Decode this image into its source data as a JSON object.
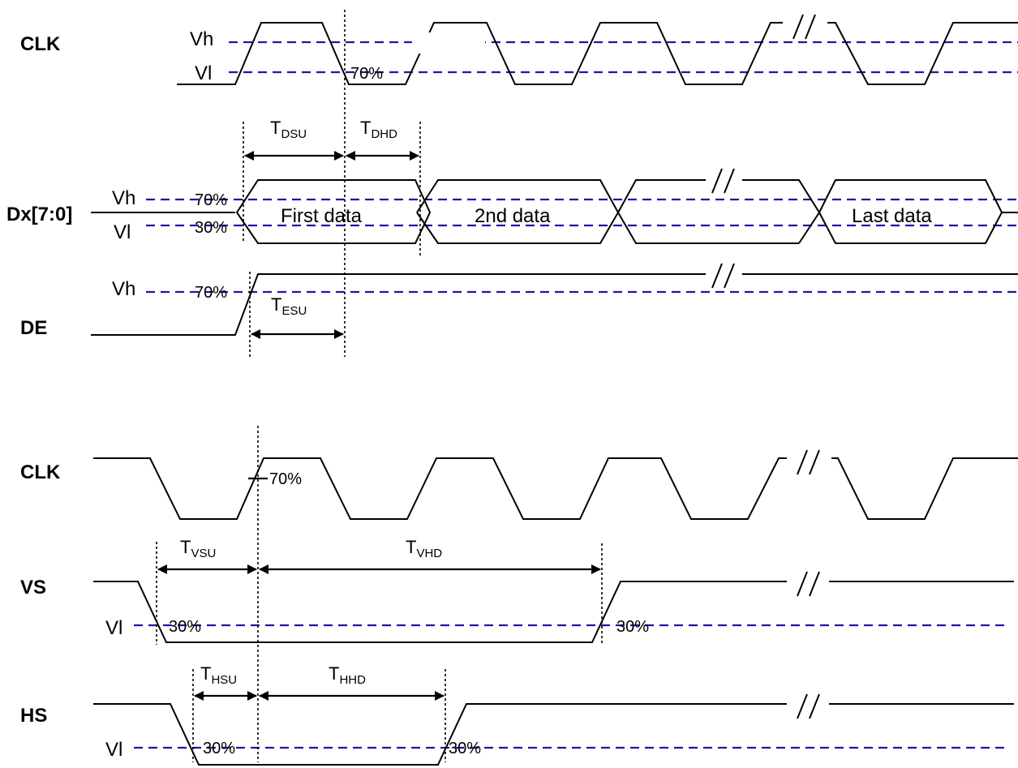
{
  "diagram": {
    "signals": {
      "clk_top": "CLK",
      "data_bus": "Dx[7:0]",
      "de": "DE",
      "clk_bottom": "CLK",
      "vs": "VS",
      "hs": "HS"
    },
    "levels": {
      "vh": "Vh",
      "vl": "Vl"
    },
    "thresholds": {
      "clk_top": "70%",
      "dx_high": "70%",
      "dx_low": "30%",
      "de_high": "70%",
      "clk_bottom": "70%",
      "vs_fall": "30%",
      "vs_rise": "30%",
      "hs_fall": "30%",
      "hs_rise": "30%"
    },
    "data_labels": {
      "first": "First data",
      "second": "2nd data",
      "last": "Last data"
    },
    "timing": {
      "tdsu": {
        "main": "T",
        "sub": "DSU"
      },
      "tdhd": {
        "main": "T",
        "sub": "DHD"
      },
      "tesu": {
        "main": "T",
        "sub": "ESU"
      },
      "tvsu": {
        "main": "T",
        "sub": "VSU"
      },
      "tvhd": {
        "main": "T",
        "sub": "VHD"
      },
      "thsu": {
        "main": "T",
        "sub": "HSU"
      },
      "thhd": {
        "main": "T",
        "sub": "HHD"
      }
    },
    "colors": {
      "reference_line": "#1a1aa0",
      "waveform": "#000000"
    }
  }
}
